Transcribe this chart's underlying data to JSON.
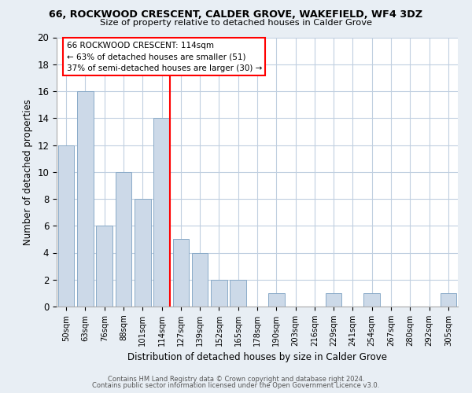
{
  "title": "66, ROCKWOOD CRESCENT, CALDER GROVE, WAKEFIELD, WF4 3DZ",
  "subtitle": "Size of property relative to detached houses in Calder Grove",
  "xlabel": "Distribution of detached houses by size in Calder Grove",
  "ylabel": "Number of detached properties",
  "categories": [
    "50sqm",
    "63sqm",
    "76sqm",
    "88sqm",
    "101sqm",
    "114sqm",
    "127sqm",
    "139sqm",
    "152sqm",
    "165sqm",
    "178sqm",
    "190sqm",
    "203sqm",
    "216sqm",
    "229sqm",
    "241sqm",
    "254sqm",
    "267sqm",
    "280sqm",
    "292sqm",
    "305sqm"
  ],
  "values": [
    12,
    16,
    6,
    10,
    8,
    14,
    5,
    4,
    2,
    2,
    0,
    1,
    0,
    0,
    1,
    0,
    1,
    0,
    0,
    0,
    1
  ],
  "bar_color": "#ccd9e8",
  "bar_edge_color": "#8aaac8",
  "highlight_index": 5,
  "ylim": [
    0,
    20
  ],
  "yticks": [
    0,
    2,
    4,
    6,
    8,
    10,
    12,
    14,
    16,
    18,
    20
  ],
  "annotation_line1": "66 ROCKWOOD CRESCENT: 114sqm",
  "annotation_line2": "← 63% of detached houses are smaller (51)",
  "annotation_line3": "37% of semi-detached houses are larger (30) →",
  "footer1": "Contains HM Land Registry data © Crown copyright and database right 2024.",
  "footer2": "Contains public sector information licensed under the Open Government Licence v3.0.",
  "bg_color": "#e8eef4",
  "plot_bg_color": "#ffffff",
  "grid_color": "#c0cfe0"
}
